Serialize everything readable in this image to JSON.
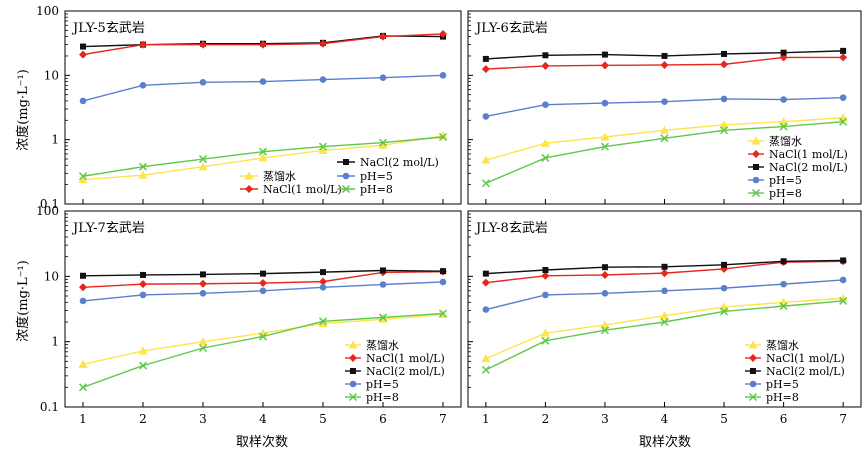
{
  "ylabel": "浓度(mg·L⁻¹)",
  "xlabel": "取样次数",
  "colors": {
    "蒸馏水": "#ffe34a",
    "NaCl(1 mol/L)": "#e8261f",
    "NaCl(2 mol/L)": "#111111",
    "pH=5": "#5b7fce",
    "pH=8": "#5fc84a"
  },
  "markers": {
    "蒸馏水": "triangle",
    "NaCl(1 mol/L)": "diamond",
    "NaCl(2 mol/L)": "square",
    "pH=5": "circle",
    "pH=8": "x"
  },
  "chart_data": [
    {
      "type": "line",
      "title": "JLY-5玄武岩",
      "yscale": "log",
      "ylim": [
        0.1,
        100
      ],
      "xlim": [
        0.7,
        7.3
      ],
      "x": [
        1,
        2,
        3,
        4,
        5,
        6,
        7
      ],
      "yticks": [
        "0.1",
        "1",
        "10",
        "100"
      ],
      "series": [
        {
          "name": "NaCl(2 mol/L)",
          "values": [
            28,
            30,
            31,
            31,
            32,
            41,
            40
          ]
        },
        {
          "name": "蒸馏水",
          "values": [
            0.24,
            0.28,
            0.38,
            0.52,
            0.68,
            0.82,
            1.15
          ]
        },
        {
          "name": "NaCl(1 mol/L)",
          "values": [
            21,
            30,
            30,
            30,
            31,
            40,
            44
          ]
        },
        {
          "name": "pH=5",
          "values": [
            4.0,
            7.0,
            7.8,
            8.0,
            8.6,
            9.2,
            10.0
          ]
        },
        {
          "name": "pH=8",
          "values": [
            0.27,
            0.38,
            0.5,
            0.65,
            0.78,
            0.9,
            1.1
          ]
        }
      ]
    },
    {
      "type": "line",
      "title": "JLY-6玄武岩",
      "yscale": "log",
      "ylim": [
        0.1,
        100
      ],
      "xlim": [
        0.7,
        7.3
      ],
      "x": [
        1,
        2,
        3,
        4,
        5,
        6,
        7
      ],
      "yticks": [
        "0.1",
        "1",
        "10",
        "100"
      ],
      "series": [
        {
          "name": "蒸馏水",
          "values": [
            0.48,
            0.88,
            1.1,
            1.4,
            1.7,
            1.9,
            2.2
          ]
        },
        {
          "name": "NaCl(1 mol/L)",
          "values": [
            12.5,
            14,
            14.3,
            14.5,
            14.8,
            19,
            19
          ]
        },
        {
          "name": "NaCl(2 mol/L)",
          "values": [
            18,
            20.5,
            21,
            20,
            21.5,
            22.5,
            24
          ]
        },
        {
          "name": "pH=5",
          "values": [
            2.3,
            3.5,
            3.7,
            3.9,
            4.3,
            4.2,
            4.5
          ]
        },
        {
          "name": "pH=8",
          "values": [
            0.21,
            0.52,
            0.78,
            1.05,
            1.4,
            1.6,
            1.9
          ]
        }
      ]
    },
    {
      "type": "line",
      "title": "JLY-7玄武岩",
      "yscale": "log",
      "ylim": [
        0.1,
        100
      ],
      "xlim": [
        0.7,
        7.3
      ],
      "x": [
        1,
        2,
        3,
        4,
        5,
        6,
        7
      ],
      "yticks": [
        "0.1",
        "1",
        "10",
        "100"
      ],
      "series": [
        {
          "name": "蒸馏水",
          "values": [
            0.45,
            0.72,
            1.0,
            1.35,
            1.9,
            2.2,
            2.6
          ]
        },
        {
          "name": "NaCl(1 mol/L)",
          "values": [
            6.8,
            7.6,
            7.7,
            7.9,
            8.3,
            11.5,
            11.8
          ]
        },
        {
          "name": "NaCl(2 mol/L)",
          "values": [
            10.2,
            10.5,
            10.7,
            11,
            11.6,
            12.3,
            12
          ]
        },
        {
          "name": "pH=5",
          "values": [
            4.2,
            5.2,
            5.5,
            6.0,
            6.8,
            7.5,
            8.2
          ]
        },
        {
          "name": "pH=8",
          "values": [
            0.2,
            0.43,
            0.8,
            1.2,
            2.05,
            2.35,
            2.7
          ]
        }
      ]
    },
    {
      "type": "line",
      "title": "JLY-8玄武岩",
      "yscale": "log",
      "ylim": [
        0.1,
        100
      ],
      "xlim": [
        0.7,
        7.3
      ],
      "x": [
        1,
        2,
        3,
        4,
        5,
        6,
        7
      ],
      "yticks": [
        "0.1",
        "1",
        "10",
        "100"
      ],
      "series": [
        {
          "name": "蒸馏水",
          "values": [
            0.55,
            1.35,
            1.8,
            2.5,
            3.4,
            4.0,
            4.6
          ]
        },
        {
          "name": "NaCl(1 mol/L)",
          "values": [
            8.0,
            10.2,
            10.5,
            11.2,
            13,
            16.5,
            17
          ]
        },
        {
          "name": "NaCl(2 mol/L)",
          "values": [
            11,
            12.5,
            13.8,
            14,
            15,
            17,
            17.5
          ]
        },
        {
          "name": "pH=5",
          "values": [
            3.1,
            5.2,
            5.5,
            6.0,
            6.6,
            7.6,
            8.8
          ]
        },
        {
          "name": "pH=8",
          "values": [
            0.37,
            1.03,
            1.5,
            2.0,
            2.9,
            3.5,
            4.2
          ]
        }
      ]
    }
  ]
}
